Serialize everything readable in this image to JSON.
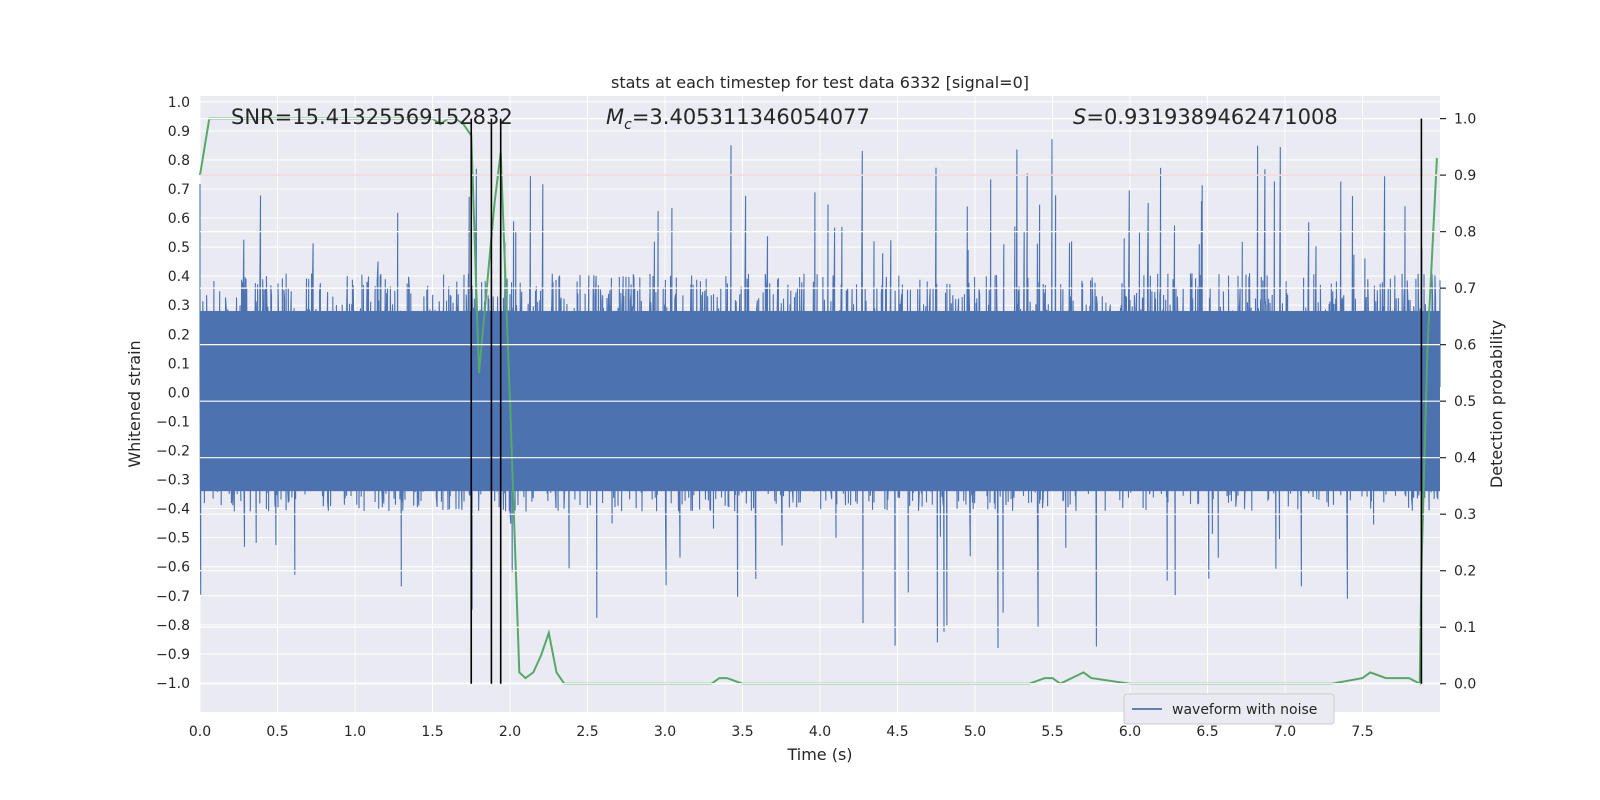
{
  "chart_data": {
    "type": "line",
    "title": "stats at each timestep for test data 6332 [signal=0]",
    "xlabel": "Time (s)",
    "ylabel": "Whitened strain",
    "ylabel_right": "Detection probability",
    "xlim": [
      0.0,
      8.0
    ],
    "ylim": [
      -1.1,
      1.02
    ],
    "ylim_right": [
      -0.05,
      1.04
    ],
    "x_ticks": [
      "0.0",
      "0.5",
      "1.0",
      "1.5",
      "2.0",
      "2.5",
      "3.0",
      "3.5",
      "4.0",
      "4.5",
      "5.0",
      "5.5",
      "6.0",
      "6.5",
      "7.0",
      "7.5"
    ],
    "y_ticks": [
      "1.0",
      "0.9",
      "0.8",
      "0.7",
      "0.6",
      "0.5",
      "0.4",
      "0.3",
      "0.2",
      "0.1",
      "0.0",
      "-0.1",
      "-0.2",
      "-0.3",
      "-0.4",
      "-0.5",
      "-0.6",
      "-0.7",
      "-0.8",
      "-0.9",
      "-1.0"
    ],
    "y_ticks_right": [
      "1.0",
      "0.9",
      "0.8",
      "0.7",
      "0.6",
      "0.5",
      "0.4",
      "0.3",
      "0.2",
      "0.1",
      "0.0"
    ],
    "annotations": {
      "snr": "SNR=15.41325569152832",
      "mc_symbol": "M",
      "mc_sub": "c",
      "mc_value": "=3.405311346054077",
      "s_symbol": "S",
      "s_value": "=0.9319389462471008"
    },
    "threshold": 0.9,
    "vlines": [
      1.75,
      1.88,
      1.94,
      7.88
    ],
    "grid": true,
    "legend": {
      "position": "lower-right",
      "entries": [
        "waveform with noise"
      ]
    },
    "series": [
      {
        "name": "waveform with noise",
        "axis": "left",
        "kind": "noise",
        "color": "#4c72b0",
        "x_range": [
          0.0,
          8.0
        ],
        "approx_envelope": [
          -0.45,
          0.45
        ],
        "approx_extremes": [
          -1.0,
          0.92
        ]
      },
      {
        "axis": "right",
        "color": "#55a868",
        "x": [
          0.0,
          0.06,
          0.2,
          0.5,
          1.0,
          1.5,
          1.55,
          1.6,
          1.65,
          1.7,
          1.75,
          1.8,
          1.85,
          1.9,
          1.94,
          2.0,
          2.06,
          2.1,
          2.15,
          2.2,
          2.25,
          2.3,
          2.35,
          2.5,
          3.0,
          3.3,
          3.35,
          3.4,
          3.5,
          4.0,
          4.5,
          5.0,
          5.2,
          5.35,
          5.45,
          5.5,
          5.55,
          5.7,
          5.75,
          6.0,
          6.5,
          6.9,
          7.0,
          7.3,
          7.5,
          7.55,
          7.65,
          7.8,
          7.87,
          7.88,
          7.92,
          7.98
        ],
        "y": [
          0.9,
          1.0,
          1.0,
          1.0,
          1.0,
          1.0,
          0.99,
          1.0,
          1.0,
          0.99,
          0.97,
          0.55,
          0.7,
          0.85,
          0.94,
          0.5,
          0.02,
          0.01,
          0.02,
          0.05,
          0.09,
          0.02,
          0.0,
          0.0,
          0.0,
          0.0,
          0.01,
          0.01,
          0.0,
          0.0,
          0.0,
          0.0,
          0.0,
          0.0,
          0.01,
          0.01,
          0.0,
          0.02,
          0.01,
          0.0,
          0.0,
          0.0,
          0.0,
          0.0,
          0.01,
          0.02,
          0.01,
          0.01,
          0.0,
          0.2,
          0.6,
          0.93
        ]
      }
    ]
  }
}
